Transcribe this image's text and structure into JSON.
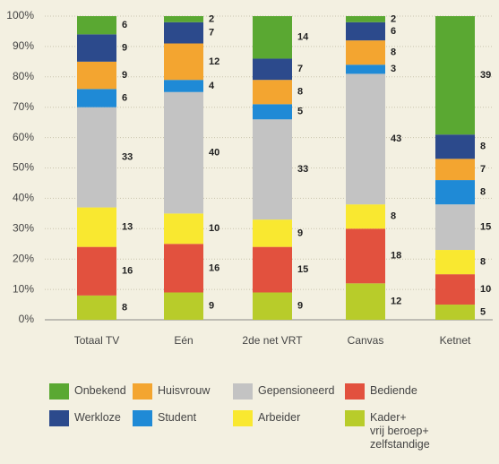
{
  "chart_data": {
    "type": "stacked_bar",
    "categories": [
      "Totaal TV",
      "Eén",
      "2de net VRT",
      "Canvas",
      "Ketnet"
    ],
    "series": [
      {
        "name": "Kader+\nvrij beroep+\nzelfstandige",
        "color": "#b8cc2a",
        "values": [
          8,
          9,
          9,
          12,
          5
        ]
      },
      {
        "name": "Bediende",
        "color": "#e2513e",
        "values": [
          16,
          16,
          15,
          18,
          10
        ]
      },
      {
        "name": "Arbeider",
        "color": "#f9e830",
        "values": [
          13,
          10,
          9,
          8,
          8
        ]
      },
      {
        "name": "Gepensioneerd",
        "color": "#c3c3c3",
        "values": [
          33,
          40,
          33,
          43,
          15
        ]
      },
      {
        "name": "Student",
        "color": "#1f8ad6",
        "values": [
          6,
          4,
          5,
          3,
          8
        ]
      },
      {
        "name": "Huisvrouw",
        "color": "#f3a530",
        "values": [
          9,
          12,
          8,
          8,
          7
        ]
      },
      {
        "name": "Werkloze",
        "color": "#2c4a8c",
        "values": [
          9,
          7,
          7,
          6,
          8
        ]
      },
      {
        "name": "Onbekend",
        "color": "#5aa832",
        "values": [
          6,
          2,
          14,
          2,
          39
        ]
      }
    ],
    "ylim": [
      0,
      100
    ],
    "yticks": [
      {
        "value": 0,
        "label": "0%"
      },
      {
        "value": 10,
        "label": "10%"
      },
      {
        "value": 20,
        "label": "20%"
      },
      {
        "value": 30,
        "label": "30%"
      },
      {
        "value": 40,
        "label": "40%"
      },
      {
        "value": 50,
        "label": "50%"
      },
      {
        "value": 60,
        "label": "60%"
      },
      {
        "value": 70,
        "label": "70%"
      },
      {
        "value": 80,
        "label": "80%"
      },
      {
        "value": 90,
        "label": "90%"
      },
      {
        "value": 100,
        "label": "100%"
      }
    ],
    "grid": true
  }
}
